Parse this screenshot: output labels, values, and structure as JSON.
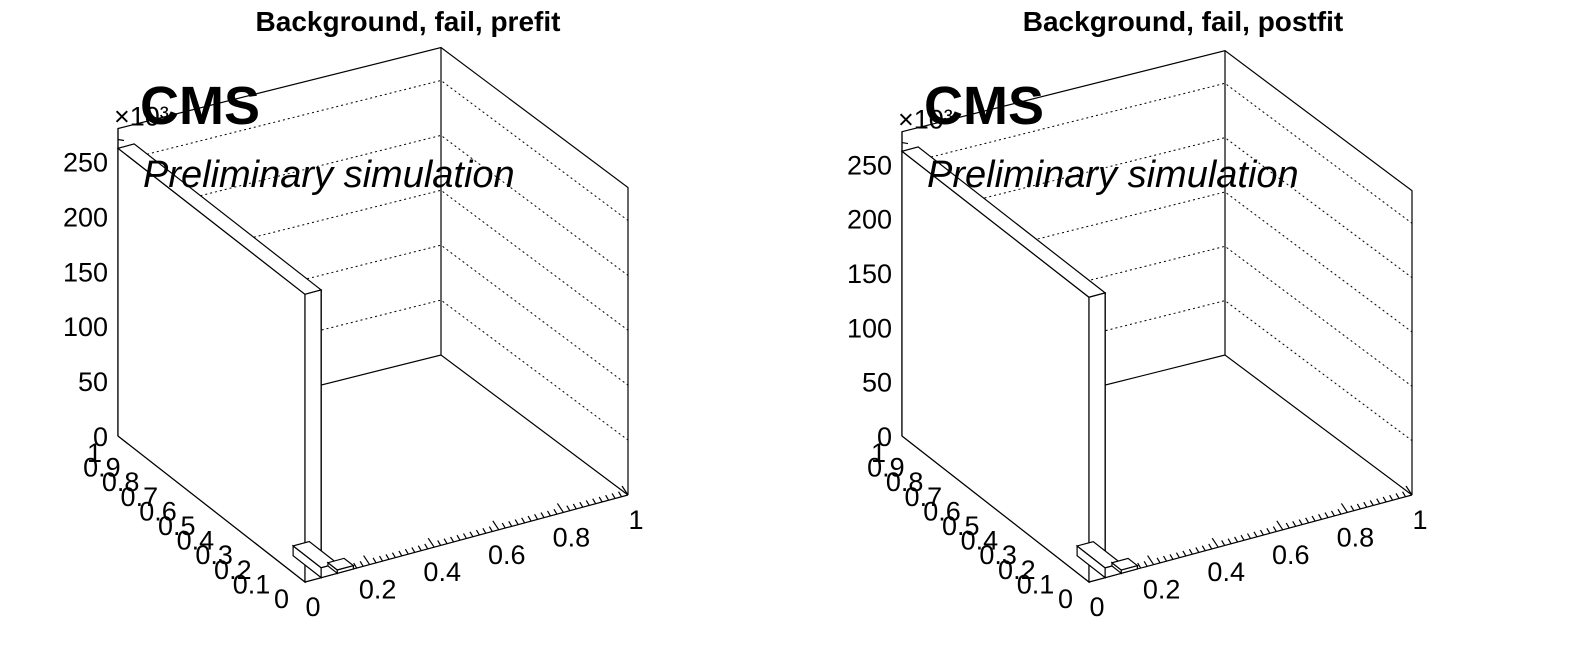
{
  "chart_data": [
    {
      "type": "lego",
      "title": "Background, fail, prefit",
      "experiment_label": "CMS",
      "status_label": "Preliminary simulation",
      "z_exponent_label": "×10³",
      "z_range": [
        0,
        280000
      ],
      "z_ticks": [
        0,
        50,
        100,
        150,
        200,
        250
      ],
      "x_range": [
        0,
        1
      ],
      "x_ticks": [
        "0",
        "0.2",
        "0.4",
        "0.6",
        "0.8",
        "1"
      ],
      "y_range": [
        0,
        1
      ],
      "y_ticks": [
        "0",
        "0.1",
        "0.2",
        "0.3",
        "0.4",
        "0.5",
        "0.6",
        "0.7",
        "0.8",
        "0.9",
        "1"
      ],
      "grid": true,
      "bins": [
        {
          "x0": 0.0,
          "x1": 0.05,
          "y0": 0.0,
          "y1": 1.0,
          "z": 262000
        },
        {
          "x0": 0.05,
          "x1": 0.1,
          "y0": 0.0,
          "y1": 0.15,
          "z": 9000
        },
        {
          "x0": 0.1,
          "x1": 0.15,
          "y0": 0.0,
          "y1": 0.05,
          "z": 3000
        }
      ]
    },
    {
      "type": "lego",
      "title": "Background, fail, postfit",
      "experiment_label": "CMS",
      "status_label": "Preliminary simulation",
      "z_exponent_label": "×10³",
      "z_range": [
        0,
        280000
      ],
      "z_ticks": [
        0,
        50,
        100,
        150,
        200,
        250
      ],
      "x_range": [
        0,
        1
      ],
      "x_ticks": [
        "0",
        "0.2",
        "0.4",
        "0.6",
        "0.8",
        "1"
      ],
      "y_range": [
        0,
        1
      ],
      "y_ticks": [
        "0",
        "0.1",
        "0.2",
        "0.3",
        "0.4",
        "0.5",
        "0.6",
        "0.7",
        "0.8",
        "0.9",
        "1"
      ],
      "grid": true,
      "bins": [
        {
          "x0": 0.0,
          "x1": 0.05,
          "y0": 0.0,
          "y1": 1.0,
          "z": 262000
        },
        {
          "x0": 0.05,
          "x1": 0.1,
          "y0": 0.0,
          "y1": 0.15,
          "z": 9000
        },
        {
          "x0": 0.1,
          "x1": 0.15,
          "y0": 0.0,
          "y1": 0.05,
          "z": 3000
        }
      ]
    }
  ]
}
